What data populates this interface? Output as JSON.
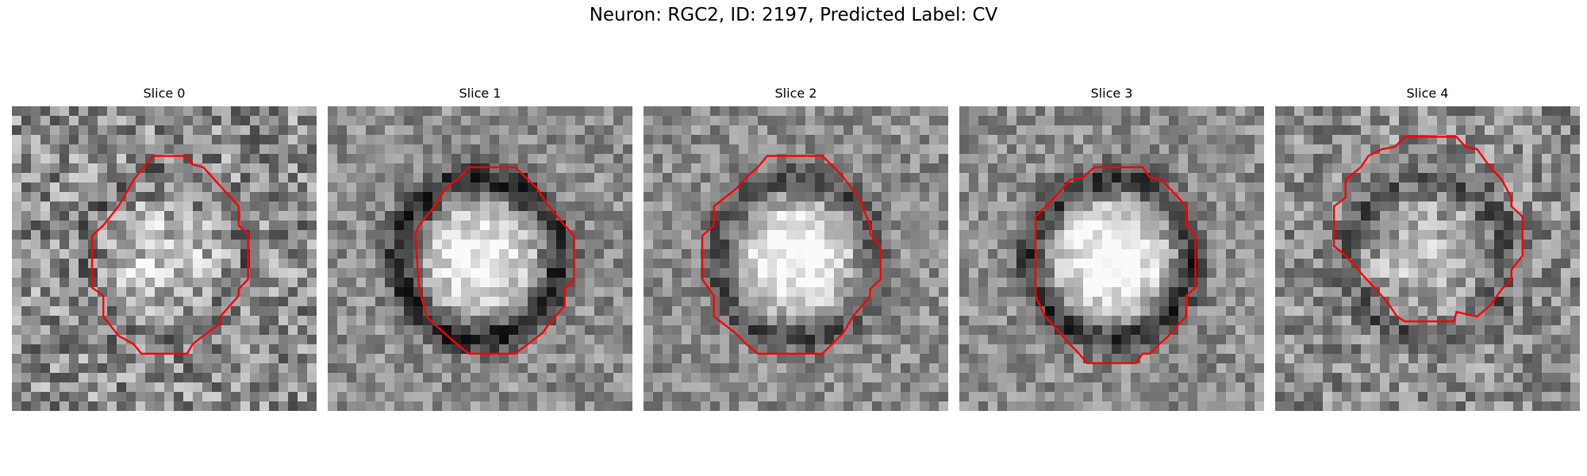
{
  "figure": {
    "title": "Neuron: RGC2, ID: 2197, Predicted Label: CV"
  },
  "overlay_color": "#ff0000",
  "panels": [
    {
      "title": "Slice 0",
      "image": {
        "type": "grayscale-microscopy-crop",
        "grid": 32,
        "seed": 11,
        "bright_center": 0.25,
        "dark_ring": 0.12,
        "noise": 0.55
      },
      "roi_polygon": [
        [
          0.463,
          0.163
        ],
        [
          0.569,
          0.163
        ],
        [
          0.593,
          0.191
        ],
        [
          0.628,
          0.2
        ],
        [
          0.744,
          0.328
        ],
        [
          0.744,
          0.391
        ],
        [
          0.775,
          0.42
        ],
        [
          0.775,
          0.568
        ],
        [
          0.744,
          0.6
        ],
        [
          0.744,
          0.622
        ],
        [
          0.684,
          0.69
        ],
        [
          0.684,
          0.712
        ],
        [
          0.628,
          0.753
        ],
        [
          0.593,
          0.781
        ],
        [
          0.575,
          0.812
        ],
        [
          0.425,
          0.812
        ],
        [
          0.4,
          0.781
        ],
        [
          0.35,
          0.753
        ],
        [
          0.3,
          0.69
        ],
        [
          0.3,
          0.622
        ],
        [
          0.263,
          0.595
        ],
        [
          0.263,
          0.425
        ],
        [
          0.3,
          0.391
        ],
        [
          0.35,
          0.328
        ],
        [
          0.4,
          0.241
        ],
        [
          0.431,
          0.2
        ]
      ]
    },
    {
      "title": "Slice 1",
      "image": {
        "type": "grayscale-microscopy-crop",
        "grid": 32,
        "seed": 27,
        "bright_center": 0.45,
        "dark_ring": 0.45,
        "noise": 0.35
      },
      "roi_polygon": [
        [
          0.463,
          0.2
        ],
        [
          0.615,
          0.2
        ],
        [
          0.687,
          0.269
        ],
        [
          0.706,
          0.3
        ],
        [
          0.725,
          0.328
        ],
        [
          0.778,
          0.391
        ],
        [
          0.808,
          0.425
        ],
        [
          0.808,
          0.568
        ],
        [
          0.778,
          0.6
        ],
        [
          0.778,
          0.653
        ],
        [
          0.725,
          0.716
        ],
        [
          0.706,
          0.743
        ],
        [
          0.656,
          0.781
        ],
        [
          0.615,
          0.812
        ],
        [
          0.463,
          0.812
        ],
        [
          0.425,
          0.781
        ],
        [
          0.35,
          0.716
        ],
        [
          0.325,
          0.69
        ],
        [
          0.3,
          0.6
        ],
        [
          0.287,
          0.42
        ],
        [
          0.3,
          0.391
        ],
        [
          0.35,
          0.328
        ],
        [
          0.387,
          0.269
        ],
        [
          0.425,
          0.241
        ]
      ]
    },
    {
      "title": "Slice 2",
      "image": {
        "type": "grayscale-microscopy-crop",
        "grid": 32,
        "seed": 43,
        "bright_center": 0.5,
        "dark_ring": 0.3,
        "noise": 0.35
      },
      "roi_polygon": [
        [
          0.406,
          0.163
        ],
        [
          0.587,
          0.163
        ],
        [
          0.625,
          0.2
        ],
        [
          0.656,
          0.233
        ],
        [
          0.706,
          0.3
        ],
        [
          0.744,
          0.391
        ],
        [
          0.744,
          0.42
        ],
        [
          0.778,
          0.462
        ],
        [
          0.778,
          0.568
        ],
        [
          0.744,
          0.6
        ],
        [
          0.744,
          0.622
        ],
        [
          0.687,
          0.69
        ],
        [
          0.656,
          0.743
        ],
        [
          0.587,
          0.812
        ],
        [
          0.375,
          0.812
        ],
        [
          0.337,
          0.781
        ],
        [
          0.3,
          0.743
        ],
        [
          0.231,
          0.69
        ],
        [
          0.231,
          0.622
        ],
        [
          0.193,
          0.568
        ],
        [
          0.193,
          0.425
        ],
        [
          0.231,
          0.391
        ],
        [
          0.231,
          0.328
        ],
        [
          0.306,
          0.269
        ],
        [
          0.337,
          0.233
        ],
        [
          0.375,
          0.2
        ]
      ]
    },
    {
      "title": "Slice 3",
      "image": {
        "type": "grayscale-microscopy-crop",
        "grid": 32,
        "seed": 58,
        "bright_center": 0.55,
        "dark_ring": 0.4,
        "noise": 0.35
      },
      "roi_polygon": [
        [
          0.443,
          0.2
        ],
        [
          0.601,
          0.2
        ],
        [
          0.625,
          0.233
        ],
        [
          0.663,
          0.241
        ],
        [
          0.719,
          0.3
        ],
        [
          0.744,
          0.328
        ],
        [
          0.744,
          0.391
        ],
        [
          0.775,
          0.425
        ],
        [
          0.775,
          0.595
        ],
        [
          0.744,
          0.622
        ],
        [
          0.744,
          0.69
        ],
        [
          0.719,
          0.716
        ],
        [
          0.687,
          0.753
        ],
        [
          0.656,
          0.781
        ],
        [
          0.625,
          0.812
        ],
        [
          0.601,
          0.812
        ],
        [
          0.581,
          0.843
        ],
        [
          0.419,
          0.843
        ],
        [
          0.393,
          0.812
        ],
        [
          0.363,
          0.781
        ],
        [
          0.306,
          0.716
        ],
        [
          0.281,
          0.69
        ],
        [
          0.25,
          0.622
        ],
        [
          0.25,
          0.362
        ],
        [
          0.312,
          0.3
        ],
        [
          0.363,
          0.241
        ],
        [
          0.406,
          0.233
        ]
      ]
    },
    {
      "title": "Slice 4",
      "image": {
        "type": "grayscale-microscopy-crop",
        "grid": 32,
        "seed": 76,
        "bright_center": 0.2,
        "dark_ring": 0.2,
        "noise": 0.45
      },
      "roi_polygon": [
        [
          0.463,
          0.1
        ],
        [
          0.595,
          0.1
        ],
        [
          0.625,
          0.133
        ],
        [
          0.663,
          0.141
        ],
        [
          0.706,
          0.2
        ],
        [
          0.744,
          0.241
        ],
        [
          0.775,
          0.3
        ],
        [
          0.775,
          0.328
        ],
        [
          0.812,
          0.362
        ],
        [
          0.812,
          0.49
        ],
        [
          0.775,
          0.537
        ],
        [
          0.775,
          0.568
        ],
        [
          0.744,
          0.6
        ],
        [
          0.706,
          0.653
        ],
        [
          0.663,
          0.69
        ],
        [
          0.595,
          0.675
        ],
        [
          0.587,
          0.706
        ],
        [
          0.425,
          0.706
        ],
        [
          0.4,
          0.69
        ],
        [
          0.375,
          0.653
        ],
        [
          0.35,
          0.622
        ],
        [
          0.3,
          0.568
        ],
        [
          0.231,
          0.49
        ],
        [
          0.193,
          0.458
        ],
        [
          0.193,
          0.328
        ],
        [
          0.231,
          0.3
        ],
        [
          0.231,
          0.241
        ],
        [
          0.281,
          0.2
        ],
        [
          0.306,
          0.163
        ],
        [
          0.35,
          0.141
        ],
        [
          0.393,
          0.133
        ],
        [
          0.425,
          0.1
        ]
      ]
    }
  ]
}
